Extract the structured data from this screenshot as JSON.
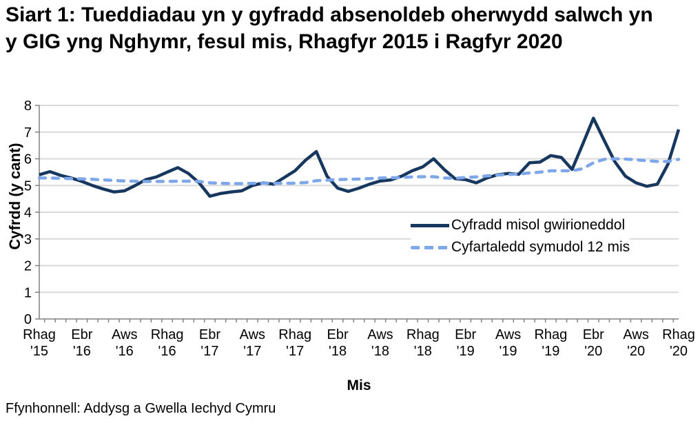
{
  "title": "Siart 1: Tueddiadau yn y gyfradd absenoldeb oherwydd salwch yn y GIG yng Nghymr, fesul mis, Rhagfyr 2015 i Ragfyr 2020",
  "source": "Ffynhonnell: Addysg a Gwella Iechyd Cymru",
  "chart_data": {
    "type": "line",
    "title": "Siart 1: Tueddiadau yn y gyfradd absenoldeb oherwydd salwch yn y GIG yng Nghymr, fesul mis, Rhagfyr 2015 i Ragfyr 2020",
    "xlabel": "Mis",
    "ylabel": "Cyfrdd (y cant)",
    "ylim": [
      0,
      8
    ],
    "y_ticks": [
      0,
      1,
      2,
      3,
      4,
      5,
      6,
      7,
      8
    ],
    "grid": "horizontal",
    "legend_position": "inside-right",
    "x_start": "Rhagfyr 2015",
    "x_end": "Rhagfyr 2020",
    "x_tick_every": 4,
    "x_tick_labels": [
      {
        "month": "Rhag",
        "year": "'15"
      },
      {
        "month": "Ebr",
        "year": "'16"
      },
      {
        "month": "Aws",
        "year": "'16"
      },
      {
        "month": "Rhag",
        "year": "'16"
      },
      {
        "month": "Ebr",
        "year": "'17"
      },
      {
        "month": "Aws",
        "year": "'17"
      },
      {
        "month": "Rhag",
        "year": "'17"
      },
      {
        "month": "Ebr",
        "year": "'18"
      },
      {
        "month": "Aws",
        "year": "'18"
      },
      {
        "month": "Rhag",
        "year": "'18"
      },
      {
        "month": "Ebr",
        "year": "'19"
      },
      {
        "month": "Aws",
        "year": "'19"
      },
      {
        "month": "Rhag",
        "year": "'19"
      },
      {
        "month": "Ebr",
        "year": "'20"
      },
      {
        "month": "Aws",
        "year": "'20"
      },
      {
        "month": "Rhag",
        "year": "'20"
      }
    ],
    "colors": {
      "grid": "#D9D9D9",
      "axis": "#808080"
    },
    "series": [
      {
        "name": "Cyfradd misol gwirioneddol",
        "style": "solid",
        "color": "#17375E",
        "values": [
          5.4,
          5.52,
          5.38,
          5.28,
          5.15,
          5.0,
          4.87,
          4.76,
          4.8,
          5.0,
          5.22,
          5.32,
          5.5,
          5.67,
          5.45,
          5.1,
          4.6,
          4.7,
          4.76,
          4.8,
          5.0,
          5.1,
          5.05,
          5.3,
          5.55,
          5.95,
          6.27,
          5.35,
          4.9,
          4.78,
          4.9,
          5.05,
          5.17,
          5.21,
          5.35,
          5.55,
          5.7,
          6.0,
          5.6,
          5.26,
          5.22,
          5.1,
          5.28,
          5.4,
          5.45,
          5.42,
          5.85,
          5.88,
          6.12,
          6.05,
          5.6,
          6.55,
          7.52,
          6.7,
          5.9,
          5.35,
          5.1,
          4.97,
          5.05,
          5.8,
          7.1
        ]
      },
      {
        "name": "Cyfartaledd symudol 12 mis",
        "style": "dashed",
        "color": "#7DA7E8",
        "values": [
          5.28,
          5.28,
          5.27,
          5.26,
          5.25,
          5.23,
          5.21,
          5.19,
          5.17,
          5.16,
          5.15,
          5.15,
          5.15,
          5.16,
          5.16,
          5.15,
          5.1,
          5.08,
          5.07,
          5.07,
          5.08,
          5.09,
          5.08,
          5.08,
          5.09,
          5.11,
          5.18,
          5.2,
          5.22,
          5.23,
          5.24,
          5.26,
          5.28,
          5.29,
          5.3,
          5.32,
          5.33,
          5.33,
          5.28,
          5.27,
          5.3,
          5.32,
          5.36,
          5.39,
          5.41,
          5.43,
          5.47,
          5.5,
          5.55,
          5.55,
          5.55,
          5.63,
          5.85,
          5.98,
          6.0,
          5.99,
          5.96,
          5.93,
          5.9,
          5.9,
          5.98
        ]
      }
    ]
  }
}
